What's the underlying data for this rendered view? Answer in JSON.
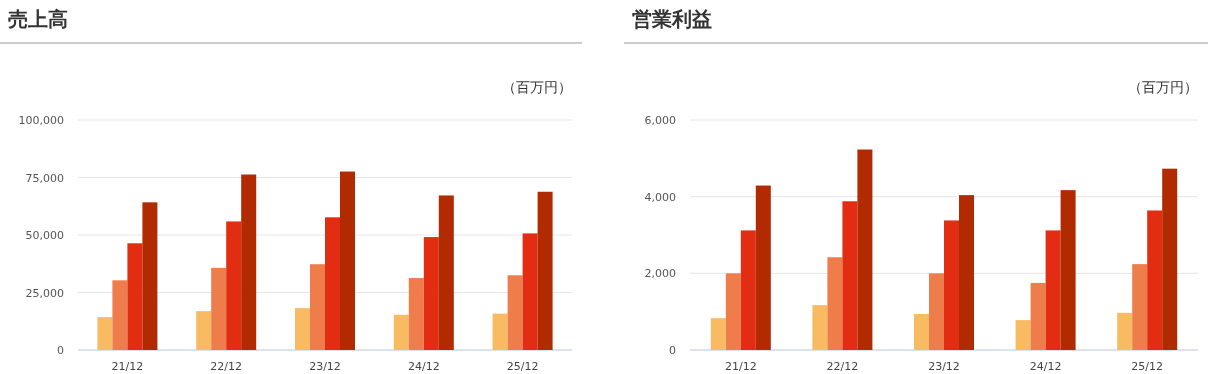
{
  "chart_data": [
    {
      "type": "bar",
      "title": "売上高",
      "ylabel": "（百万円）",
      "categories": [
        "21/12",
        "22/12",
        "23/12",
        "24/12",
        "25/12"
      ],
      "series": [
        {
          "color": "#f9bb62",
          "values": [
            14300,
            16900,
            18200,
            15300,
            15800
          ]
        },
        {
          "color": "#ef7d4c",
          "values": [
            30300,
            35700,
            37300,
            31300,
            32500
          ]
        },
        {
          "color": "#e32d12",
          "values": [
            46400,
            55900,
            57700,
            49100,
            50700
          ]
        },
        {
          "color": "#b12a00",
          "values": [
            64200,
            76300,
            77600,
            67200,
            68800
          ]
        }
      ],
      "ylim": [
        0,
        100000
      ],
      "yticks": [
        {
          "value": 0,
          "label": "0"
        },
        {
          "value": 25000,
          "label": "25,000"
        },
        {
          "value": 50000,
          "label": "50,000"
        },
        {
          "value": 75000,
          "label": "75,000"
        },
        {
          "value": 100000,
          "label": "100,000"
        }
      ],
      "grid": "y"
    },
    {
      "type": "bar",
      "title": "営業利益",
      "ylabel": "（百万円）",
      "categories": [
        "21/12",
        "22/12",
        "23/12",
        "24/12",
        "25/12"
      ],
      "series": [
        {
          "color": "#f9bb62",
          "values": [
            830,
            1170,
            940,
            780,
            970
          ]
        },
        {
          "color": "#ef7d4c",
          "values": [
            2000,
            2420,
            2000,
            1750,
            2240
          ]
        },
        {
          "color": "#e32d12",
          "values": [
            3120,
            3880,
            3380,
            3120,
            3640
          ]
        },
        {
          "color": "#b12a00",
          "values": [
            4290,
            5230,
            4040,
            4170,
            4730
          ]
        }
      ],
      "ylim": [
        0,
        6000
      ],
      "yticks": [
        {
          "value": 0,
          "label": "0"
        },
        {
          "value": 2000,
          "label": "2,000"
        },
        {
          "value": 4000,
          "label": "4,000"
        },
        {
          "value": 6000,
          "label": "6,000"
        }
      ],
      "grid": "y"
    }
  ]
}
